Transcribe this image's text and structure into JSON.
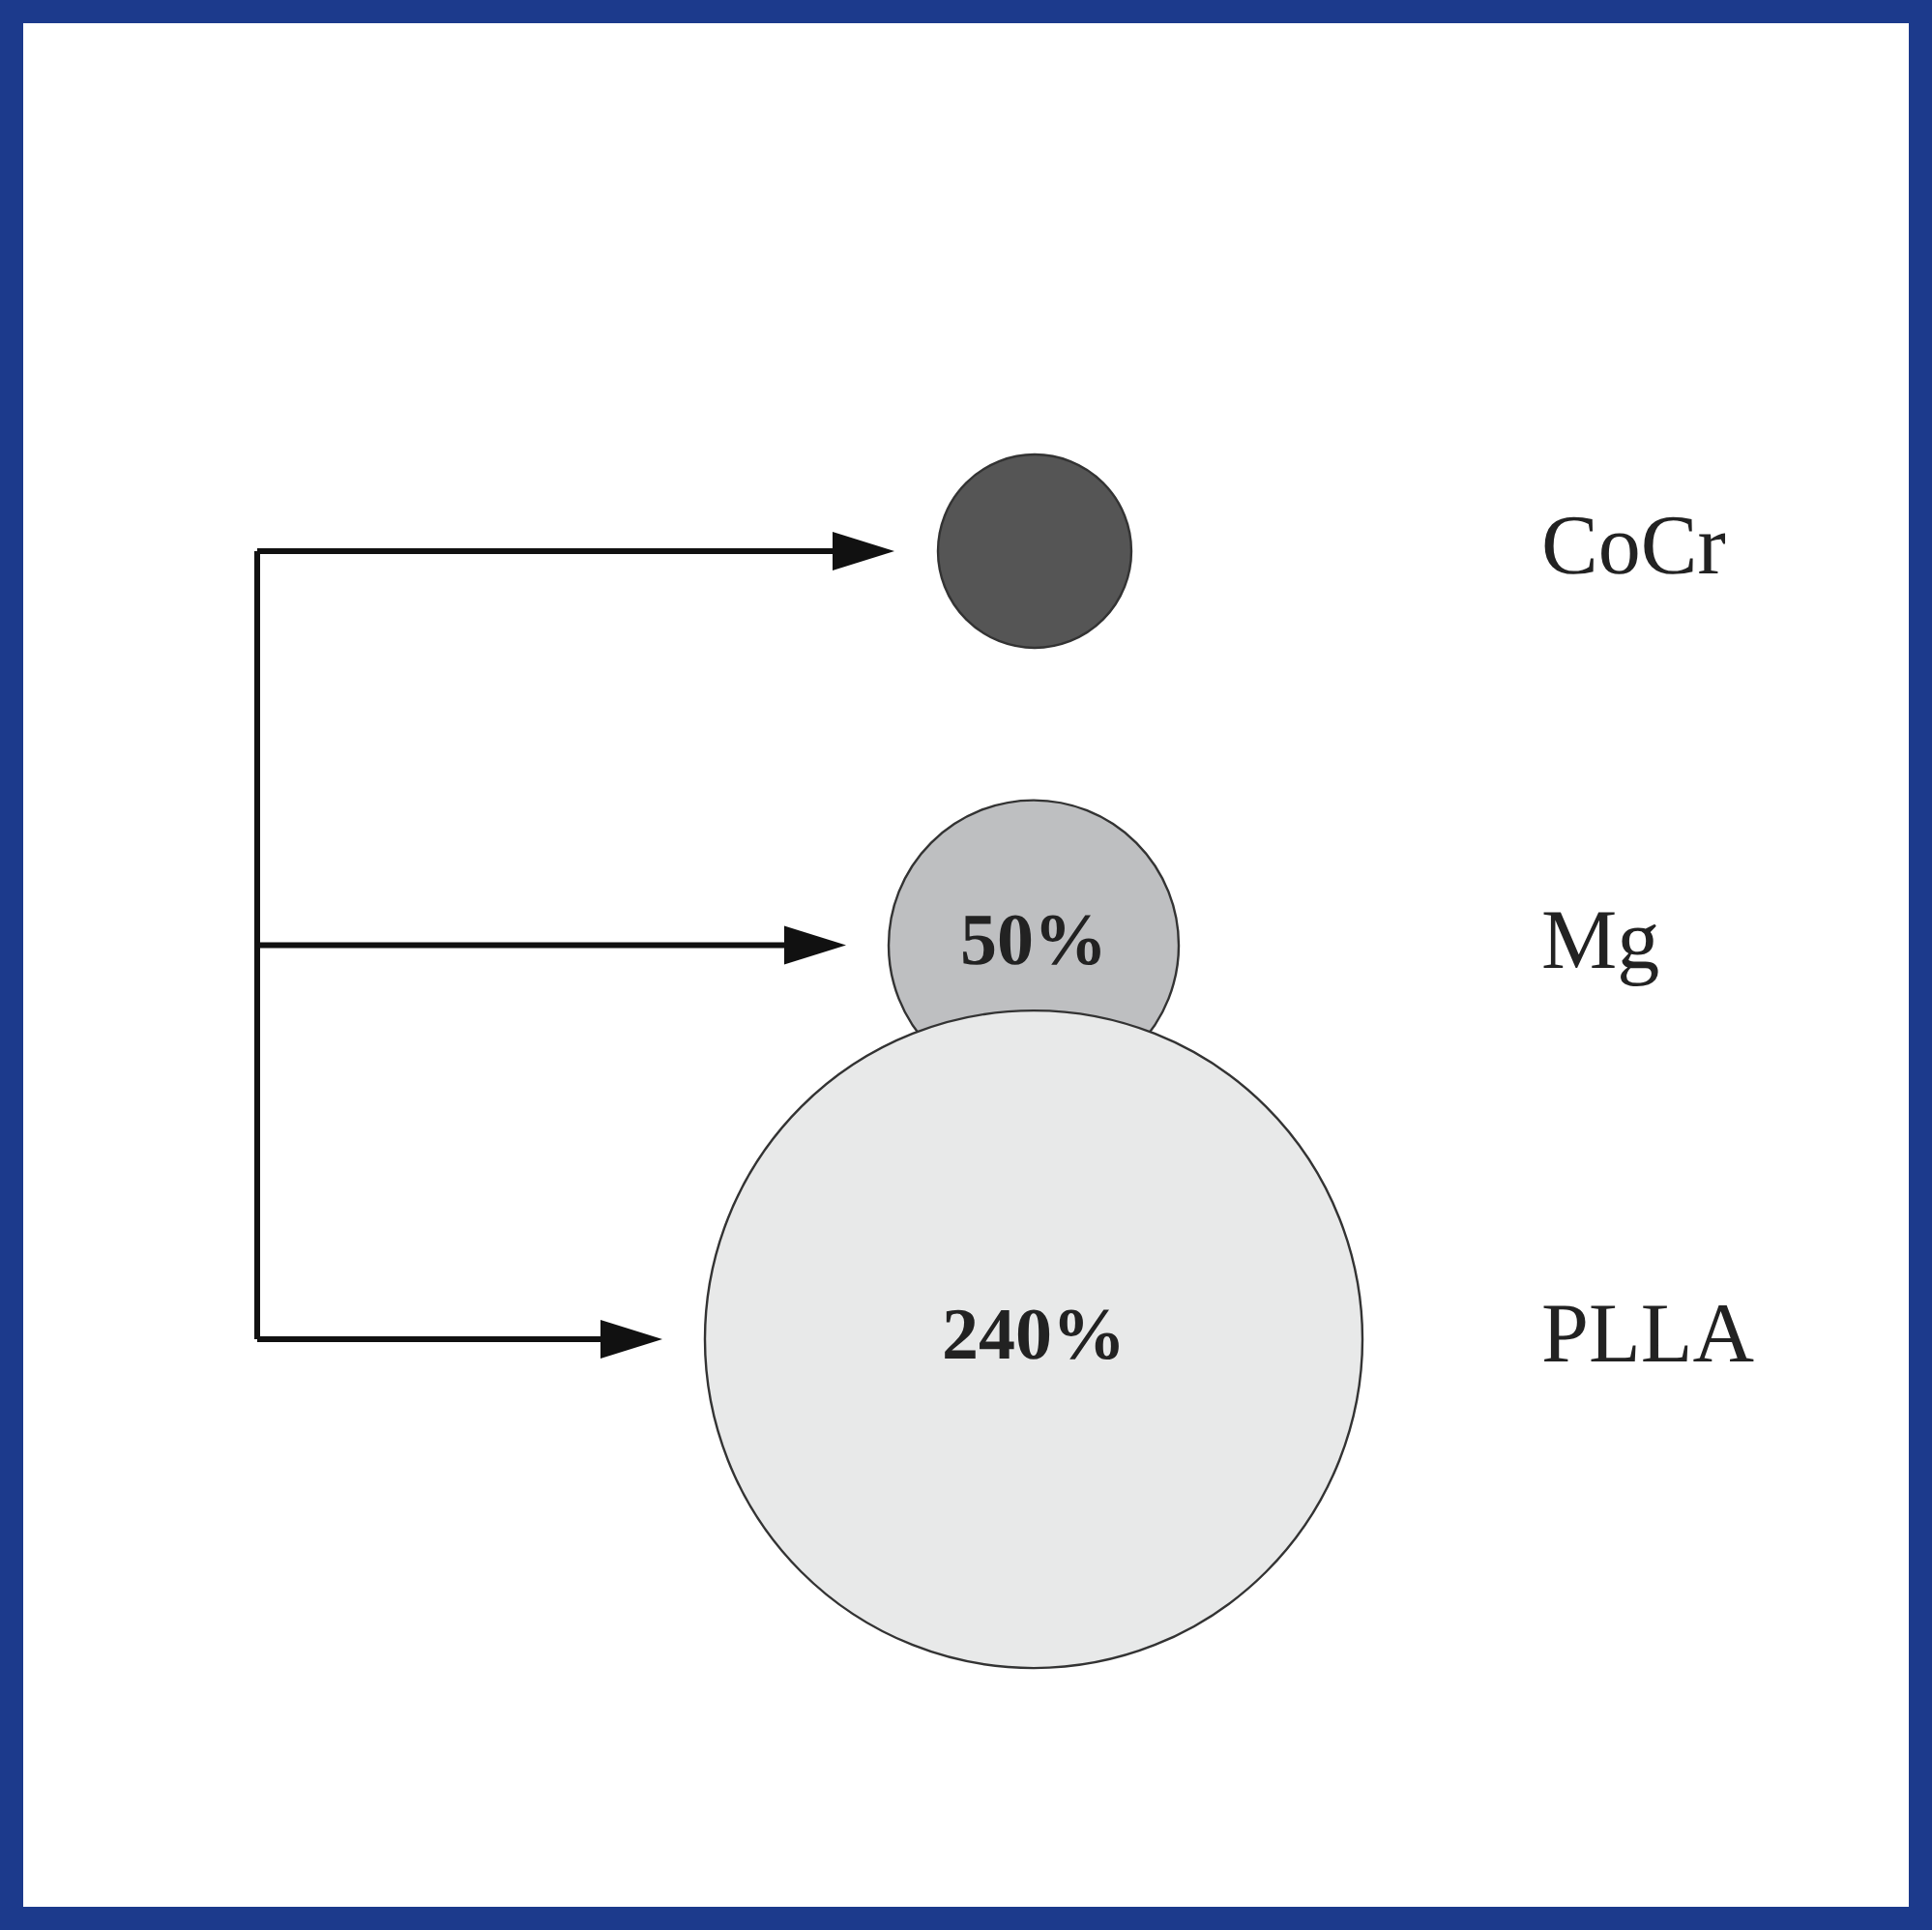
{
  "chart_data": {
    "type": "other",
    "categories": [
      "CoCr",
      "Mg",
      "PLLA"
    ],
    "values": [
      null,
      50,
      240
    ],
    "value_labels": [
      null,
      "50%",
      "240%"
    ],
    "colors": [
      "#555555",
      "#bebfc1",
      "#e8e9e9"
    ]
  }
}
